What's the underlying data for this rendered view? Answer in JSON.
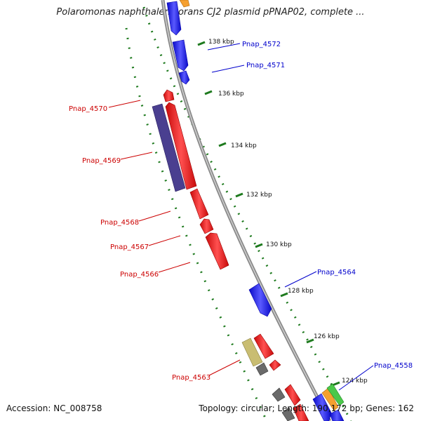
{
  "title": "Polaromonas naphthalenivorans CJ2 plasmid pPNAP02, complete ...",
  "footer": {
    "accession": "Accession: NC_008758",
    "summary": "Topology: circular; Length: 190,172 bp; Genes: 162"
  },
  "colors": {
    "backbone": "#8a8a8a",
    "tick": "#1e7a1e",
    "forward_gene": "#1515ee",
    "reverse_gene": "#ee1515",
    "forward_label": "#0000cc",
    "reverse_label": "#cc0000",
    "slate": "#4a3f90",
    "khaki": "#c9bd72",
    "gray": "#6a6a6a",
    "orange": "#f5a030",
    "green": "#4ac84a"
  },
  "ticks": [
    {
      "label": "138 kbp"
    },
    {
      "label": "136 kbp"
    },
    {
      "label": "134 kbp"
    },
    {
      "label": "132 kbp"
    },
    {
      "label": "130 kbp"
    },
    {
      "label": "128 kbp"
    },
    {
      "label": "126 kbp"
    },
    {
      "label": "124 kbp"
    }
  ],
  "gene_labels": [
    {
      "name": "Pnap_4572",
      "strand": "forward"
    },
    {
      "name": "Pnap_4571",
      "strand": "forward"
    },
    {
      "name": "Pnap_4570",
      "strand": "reverse"
    },
    {
      "name": "Pnap_4569",
      "strand": "reverse"
    },
    {
      "name": "Pnap_4568",
      "strand": "reverse"
    },
    {
      "name": "Pnap_4567",
      "strand": "reverse"
    },
    {
      "name": "Pnap_4566",
      "strand": "reverse"
    },
    {
      "name": "Pnap_4564",
      "strand": "forward"
    },
    {
      "name": "Pnap_4563",
      "strand": "reverse"
    },
    {
      "name": "Pnap_4558",
      "strand": "forward"
    }
  ]
}
